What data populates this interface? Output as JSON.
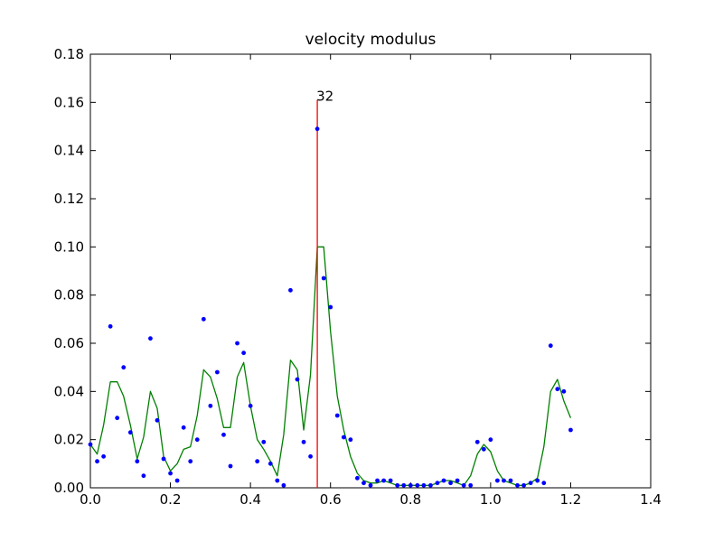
{
  "chart_data": {
    "type": "scatter",
    "title": "velocity modulus",
    "xlabel": "",
    "ylabel": "",
    "xlim": [
      0.0,
      1.4
    ],
    "ylim": [
      0.0,
      0.18
    ],
    "x_ticks": [
      "0.0",
      "0.2",
      "0.4",
      "0.6",
      "0.8",
      "1.0",
      "1.2",
      "1.4"
    ],
    "y_ticks": [
      "0.00",
      "0.02",
      "0.04",
      "0.06",
      "0.08",
      "0.10",
      "0.12",
      "0.14",
      "0.16",
      "0.18"
    ],
    "grid": false,
    "legend": "none",
    "series": [
      {
        "kind": "scatter",
        "color": "#0000ff",
        "points": [
          [
            0.0,
            0.018
          ],
          [
            0.017,
            0.011
          ],
          [
            0.033,
            0.013
          ],
          [
            0.05,
            0.067
          ],
          [
            0.067,
            0.029
          ],
          [
            0.083,
            0.05
          ],
          [
            0.1,
            0.023
          ],
          [
            0.117,
            0.011
          ],
          [
            0.133,
            0.005
          ],
          [
            0.15,
            0.062
          ],
          [
            0.167,
            0.028
          ],
          [
            0.183,
            0.012
          ],
          [
            0.2,
            0.006
          ],
          [
            0.217,
            0.003
          ],
          [
            0.233,
            0.025
          ],
          [
            0.25,
            0.011
          ],
          [
            0.267,
            0.02
          ],
          [
            0.283,
            0.07
          ],
          [
            0.3,
            0.034
          ],
          [
            0.317,
            0.048
          ],
          [
            0.333,
            0.022
          ],
          [
            0.35,
            0.009
          ],
          [
            0.367,
            0.06
          ],
          [
            0.383,
            0.056
          ],
          [
            0.4,
            0.034
          ],
          [
            0.417,
            0.011
          ],
          [
            0.433,
            0.019
          ],
          [
            0.45,
            0.01
          ],
          [
            0.467,
            0.003
          ],
          [
            0.483,
            0.001
          ],
          [
            0.5,
            0.082
          ],
          [
            0.517,
            0.045
          ],
          [
            0.533,
            0.019
          ],
          [
            0.55,
            0.013
          ],
          [
            0.567,
            0.149
          ],
          [
            0.583,
            0.087
          ],
          [
            0.6,
            0.075
          ],
          [
            0.617,
            0.03
          ],
          [
            0.633,
            0.021
          ],
          [
            0.65,
            0.02
          ],
          [
            0.667,
            0.004
          ],
          [
            0.683,
            0.002
          ],
          [
            0.7,
            0.001
          ],
          [
            0.717,
            0.003
          ],
          [
            0.733,
            0.003
          ],
          [
            0.75,
            0.003
          ],
          [
            0.767,
            0.001
          ],
          [
            0.783,
            0.001
          ],
          [
            0.8,
            0.001
          ],
          [
            0.817,
            0.001
          ],
          [
            0.833,
            0.001
          ],
          [
            0.85,
            0.001
          ],
          [
            0.867,
            0.002
          ],
          [
            0.883,
            0.003
          ],
          [
            0.9,
            0.002
          ],
          [
            0.917,
            0.003
          ],
          [
            0.933,
            0.001
          ],
          [
            0.95,
            0.001
          ],
          [
            0.967,
            0.019
          ],
          [
            0.983,
            0.016
          ],
          [
            1.0,
            0.02
          ],
          [
            1.017,
            0.003
          ],
          [
            1.033,
            0.003
          ],
          [
            1.05,
            0.003
          ],
          [
            1.067,
            0.001
          ],
          [
            1.083,
            0.001
          ],
          [
            1.1,
            0.002
          ],
          [
            1.117,
            0.003
          ],
          [
            1.133,
            0.002
          ],
          [
            1.15,
            0.059
          ],
          [
            1.167,
            0.041
          ],
          [
            1.183,
            0.04
          ],
          [
            1.2,
            0.024
          ]
        ]
      },
      {
        "kind": "line",
        "color": "#008000",
        "points": [
          [
            0.0,
            0.018
          ],
          [
            0.017,
            0.014
          ],
          [
            0.033,
            0.026
          ],
          [
            0.05,
            0.044
          ],
          [
            0.067,
            0.044
          ],
          [
            0.083,
            0.038
          ],
          [
            0.1,
            0.026
          ],
          [
            0.117,
            0.012
          ],
          [
            0.133,
            0.021
          ],
          [
            0.15,
            0.04
          ],
          [
            0.167,
            0.033
          ],
          [
            0.183,
            0.013
          ],
          [
            0.2,
            0.007
          ],
          [
            0.217,
            0.01
          ],
          [
            0.233,
            0.016
          ],
          [
            0.25,
            0.017
          ],
          [
            0.267,
            0.03
          ],
          [
            0.283,
            0.049
          ],
          [
            0.3,
            0.046
          ],
          [
            0.317,
            0.037
          ],
          [
            0.333,
            0.025
          ],
          [
            0.35,
            0.025
          ],
          [
            0.367,
            0.046
          ],
          [
            0.383,
            0.052
          ],
          [
            0.4,
            0.034
          ],
          [
            0.417,
            0.02
          ],
          [
            0.433,
            0.016
          ],
          [
            0.45,
            0.011
          ],
          [
            0.467,
            0.005
          ],
          [
            0.483,
            0.022
          ],
          [
            0.5,
            0.053
          ],
          [
            0.517,
            0.049
          ],
          [
            0.533,
            0.024
          ],
          [
            0.55,
            0.047
          ],
          [
            0.567,
            0.1
          ],
          [
            0.583,
            0.1
          ],
          [
            0.6,
            0.065
          ],
          [
            0.617,
            0.038
          ],
          [
            0.633,
            0.024
          ],
          [
            0.65,
            0.013
          ],
          [
            0.667,
            0.006
          ],
          [
            0.683,
            0.003
          ],
          [
            0.7,
            0.002
          ],
          [
            0.717,
            0.002
          ],
          [
            0.733,
            0.003
          ],
          [
            0.75,
            0.002
          ],
          [
            0.767,
            0.001
          ],
          [
            0.783,
            0.001
          ],
          [
            0.8,
            0.001
          ],
          [
            0.817,
            0.001
          ],
          [
            0.833,
            0.001
          ],
          [
            0.85,
            0.001
          ],
          [
            0.867,
            0.002
          ],
          [
            0.883,
            0.003
          ],
          [
            0.9,
            0.003
          ],
          [
            0.917,
            0.002
          ],
          [
            0.933,
            0.001
          ],
          [
            0.95,
            0.005
          ],
          [
            0.967,
            0.014
          ],
          [
            0.983,
            0.018
          ],
          [
            1.0,
            0.015
          ],
          [
            1.017,
            0.007
          ],
          [
            1.033,
            0.003
          ],
          [
            1.05,
            0.002
          ],
          [
            1.067,
            0.001
          ],
          [
            1.083,
            0.001
          ],
          [
            1.1,
            0.002
          ],
          [
            1.117,
            0.004
          ],
          [
            1.133,
            0.017
          ],
          [
            1.15,
            0.04
          ],
          [
            1.167,
            0.045
          ],
          [
            1.183,
            0.036
          ],
          [
            1.2,
            0.029
          ]
        ]
      },
      {
        "kind": "vline",
        "color": "#ff0000",
        "x": 0.567,
        "y_from": 0.0,
        "y_to": 0.161
      }
    ],
    "annotations": [
      {
        "text": "32",
        "x": 0.567,
        "y": 0.161
      }
    ]
  }
}
